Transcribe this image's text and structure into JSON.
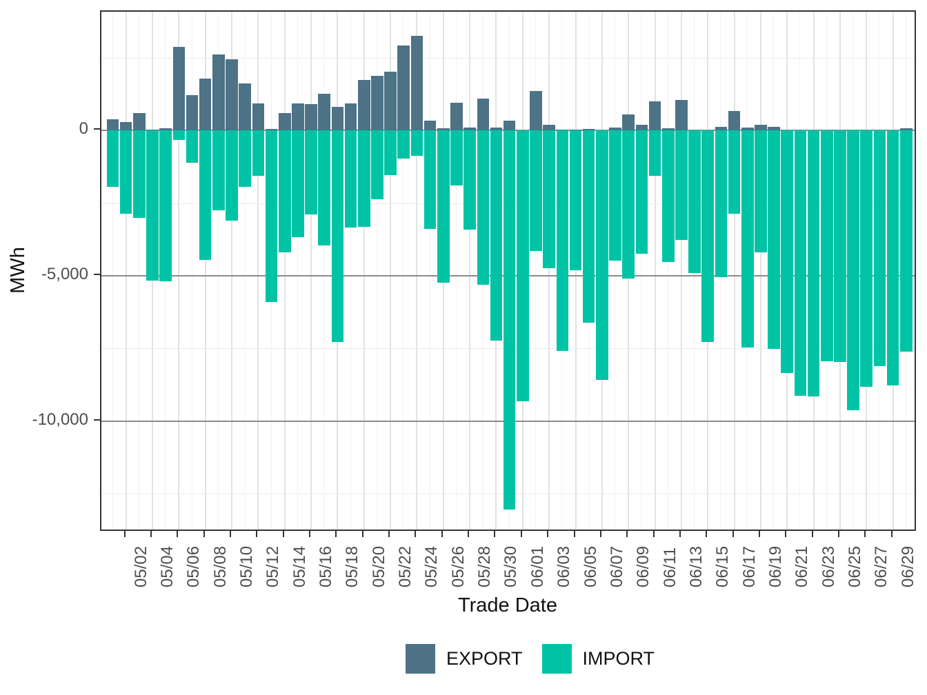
{
  "chart_data": {
    "type": "bar",
    "title": "",
    "xlabel": "Trade Date",
    "ylabel": "MWh",
    "legend_position": "bottom",
    "grid": true,
    "ylim": [
      4090,
      -13830
    ],
    "y_ticks": [
      {
        "label": "0",
        "value": 0
      },
      {
        "label": "-5,000",
        "value": -5000
      },
      {
        "label": "-10,000",
        "value": -10000
      }
    ],
    "y_minor_values": [
      2500,
      -2500,
      -7500,
      -12500
    ],
    "categories": [
      "05/01",
      "05/02",
      "05/03",
      "05/04",
      "05/05",
      "05/06",
      "05/07",
      "05/08",
      "05/09",
      "05/10",
      "05/11",
      "05/12",
      "05/13",
      "05/14",
      "05/15",
      "05/16",
      "05/17",
      "05/18",
      "05/19",
      "05/20",
      "05/21",
      "05/22",
      "05/23",
      "05/24",
      "05/25",
      "05/26",
      "05/27",
      "05/28",
      "05/29",
      "05/30",
      "05/31",
      "06/01",
      "06/02",
      "06/03",
      "06/04",
      "06/05",
      "06/06",
      "06/07",
      "06/08",
      "06/09",
      "06/10",
      "06/11",
      "06/12",
      "06/13",
      "06/14",
      "06/15",
      "06/16",
      "06/17",
      "06/18",
      "06/19",
      "06/20",
      "06/21",
      "06/22",
      "06/23",
      "06/24",
      "06/25",
      "06/26",
      "06/27",
      "06/28",
      "06/29",
      "06/30"
    ],
    "series": [
      {
        "name": "EXPORT",
        "color": "#4e7286",
        "values": [
          390,
          290,
          600,
          40,
          90,
          2870,
          1220,
          1780,
          2610,
          2450,
          1630,
          930,
          50,
          600,
          930,
          910,
          1260,
          810,
          940,
          1750,
          1890,
          2020,
          2930,
          3270,
          330,
          90,
          960,
          110,
          1100,
          100,
          350,
          0,
          1350,
          200,
          30,
          25,
          60,
          10,
          100,
          550,
          190,
          1000,
          90,
          1060,
          0,
          0,
          130,
          680,
          110,
          190,
          120,
          0,
          0,
          0,
          0,
          0,
          0,
          0,
          0,
          0,
          80
        ]
      },
      {
        "name": "IMPORT",
        "color": "#00c3a6",
        "values": [
          -1950,
          -2860,
          -3010,
          -5170,
          -5200,
          -330,
          -1100,
          -4460,
          -2750,
          -3110,
          -1940,
          -1550,
          -5900,
          -4200,
          -3660,
          -2890,
          -3950,
          -7270,
          -3330,
          -3310,
          -2370,
          -1530,
          -960,
          -870,
          -3390,
          -5230,
          -1890,
          -3400,
          -5310,
          -7240,
          -13050,
          -9320,
          -4150,
          -4740,
          -7580,
          -4810,
          -6620,
          -8580,
          -4470,
          -5100,
          -4250,
          -1550,
          -4530,
          -3760,
          -4910,
          -7280,
          -5040,
          -2870,
          -7480,
          -4200,
          -7510,
          -8350,
          -9120,
          -9150,
          -7940,
          -7970,
          -9630,
          -8820,
          -8110,
          -8770,
          -7610
        ]
      }
    ]
  }
}
